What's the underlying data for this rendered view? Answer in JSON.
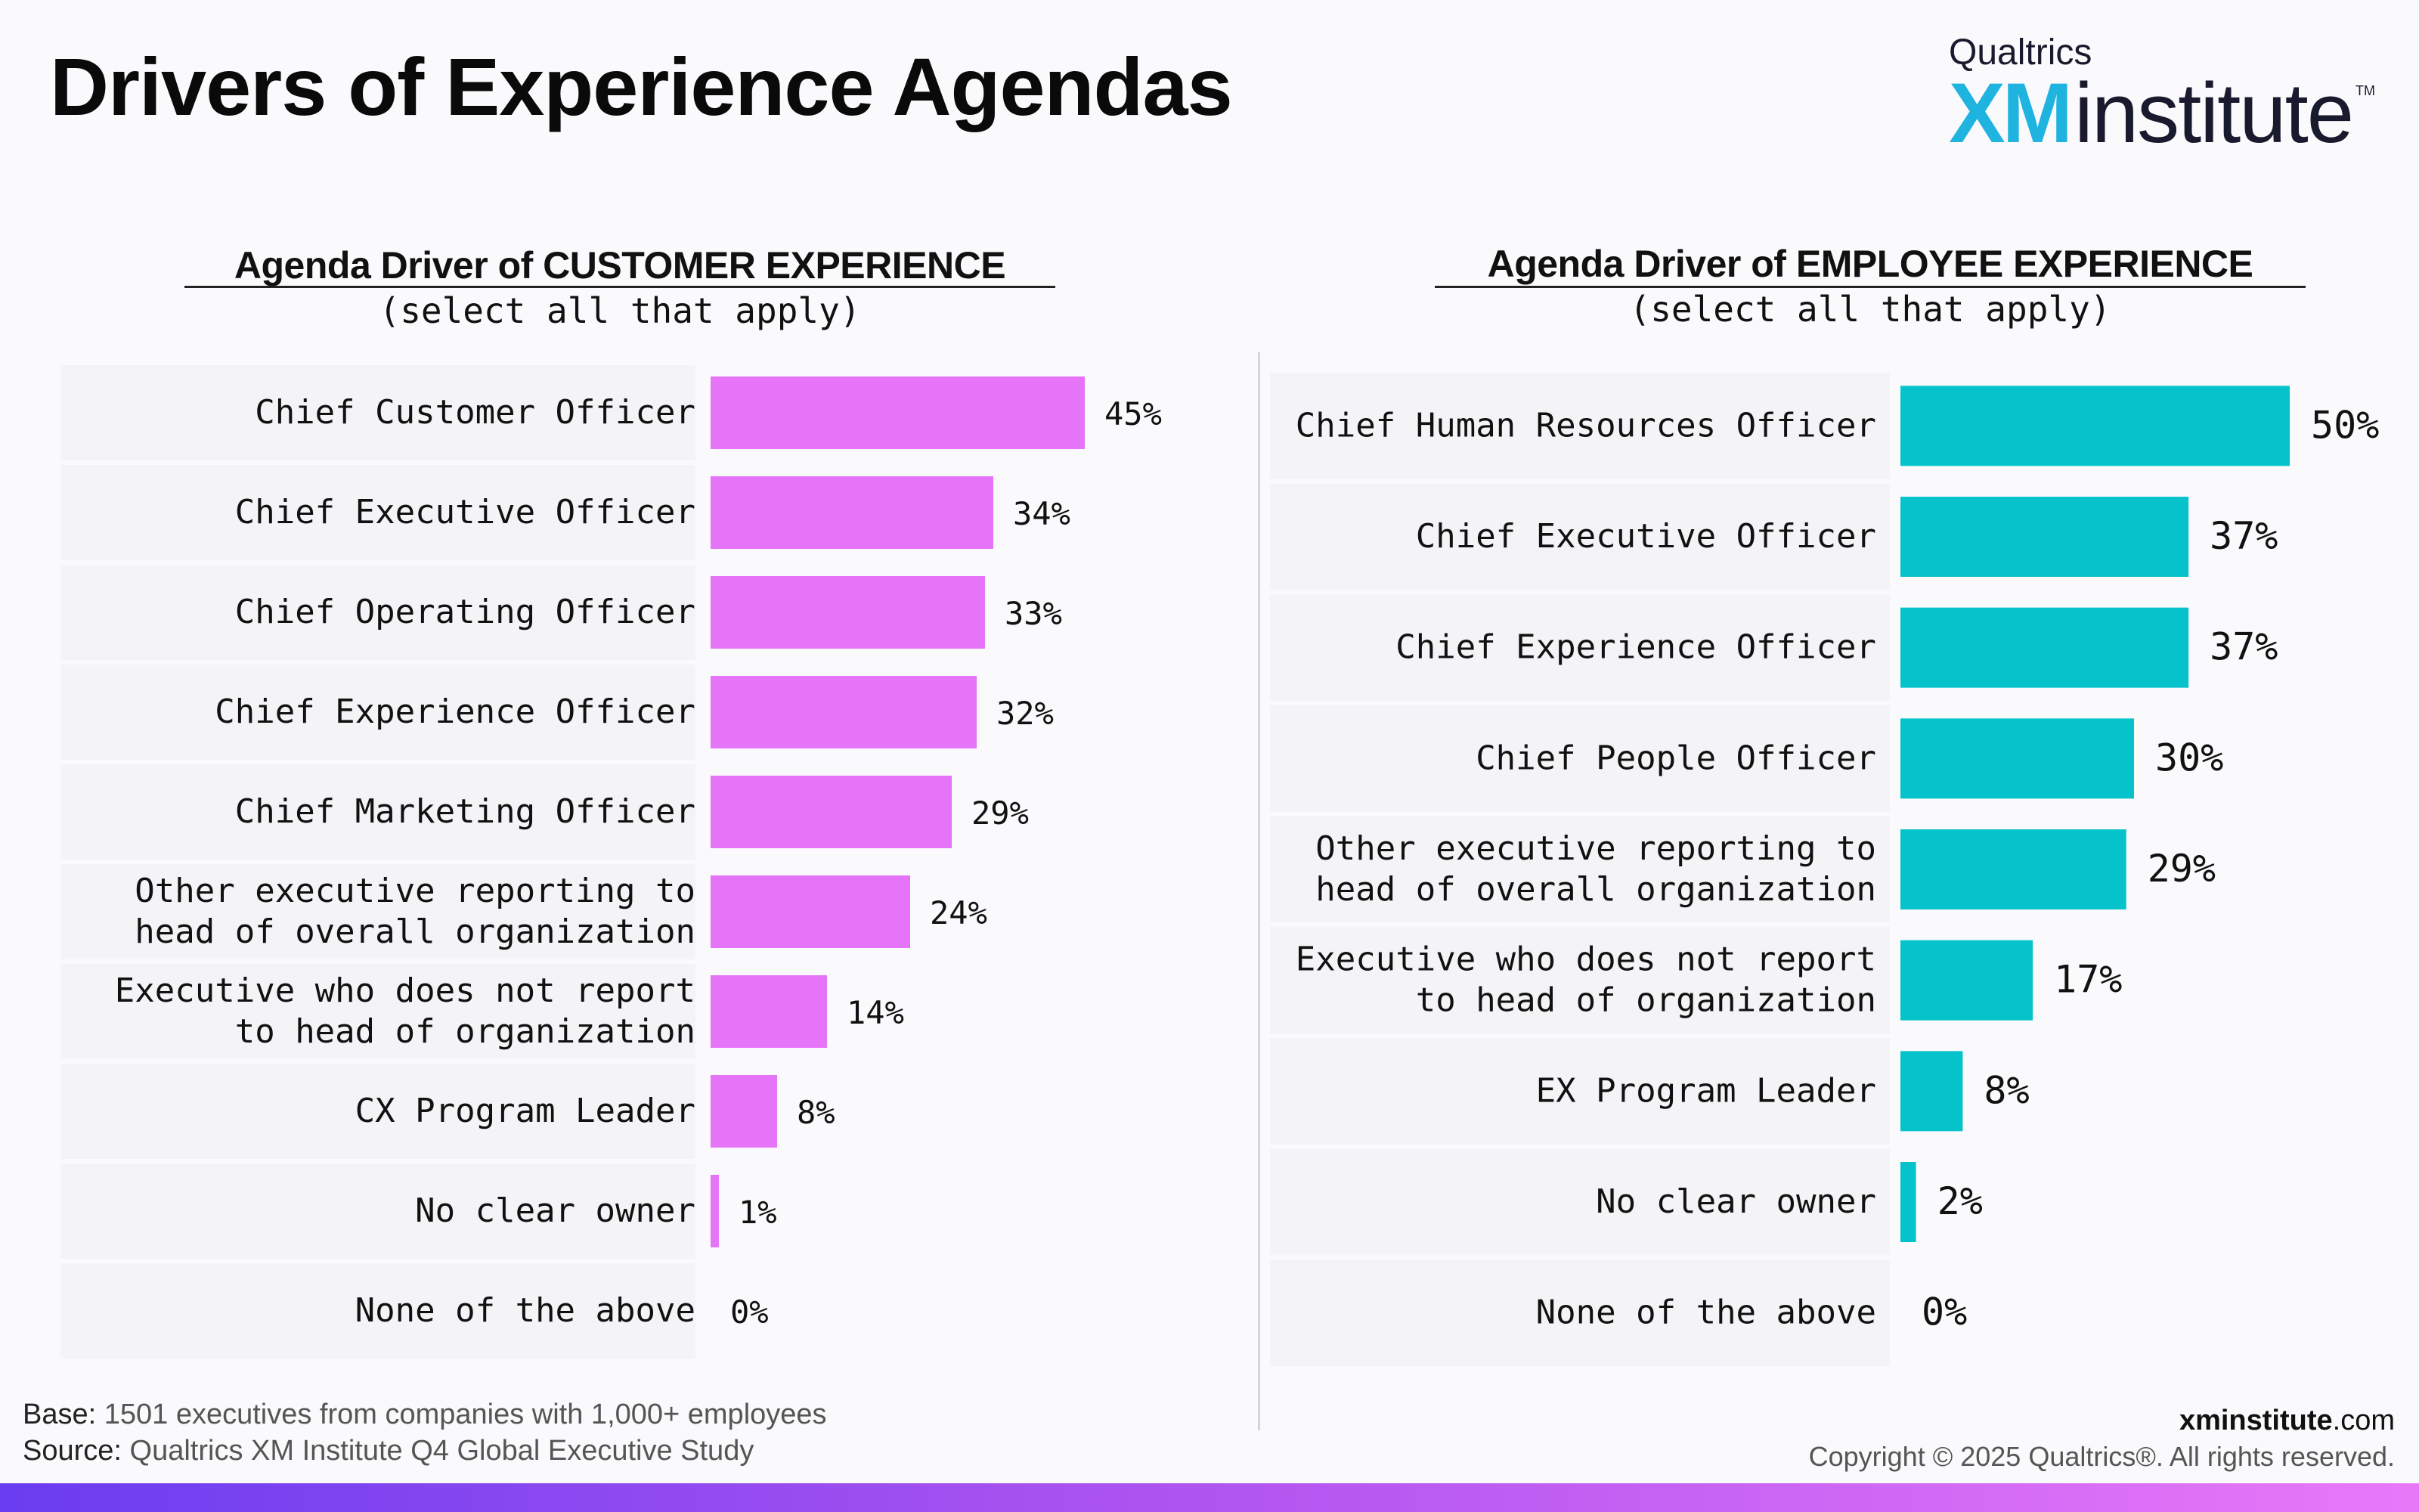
{
  "title": "Drivers of Experience Agendas",
  "logo": {
    "top": "Qualtrics",
    "xm": "XM",
    "institute": "institute",
    "tm": "TM"
  },
  "colors": {
    "cx_bar": "#e674f8",
    "ex_bar": "#06c3cb",
    "accent_blue": "#1fb3e0"
  },
  "chart_data": [
    {
      "type": "bar",
      "orientation": "horizontal",
      "title": "Agenda Driver of CUSTOMER EXPERIENCE",
      "subtitle": "(select all that apply)",
      "categories": [
        [
          "Chief Customer Officer"
        ],
        [
          "Chief Executive Officer"
        ],
        [
          "Chief Operating Officer"
        ],
        [
          "Chief Experience Officer"
        ],
        [
          "Chief Marketing Officer"
        ],
        [
          "Other executive reporting to",
          "head of overall organization"
        ],
        [
          "Executive who does not report",
          "to head of organization"
        ],
        [
          "CX Program Leader"
        ],
        [
          "No clear owner"
        ],
        [
          "None of the above"
        ]
      ],
      "values": [
        45,
        34,
        33,
        32,
        29,
        24,
        14,
        8,
        1,
        0
      ],
      "value_labels": [
        "45%",
        "34%",
        "33%",
        "32%",
        "29%",
        "24%",
        "14%",
        "8%",
        "1%",
        "0%"
      ],
      "unit": "%"
    },
    {
      "type": "bar",
      "orientation": "horizontal",
      "title": "Agenda Driver of EMPLOYEE EXPERIENCE",
      "subtitle": "(select all that apply)",
      "categories": [
        [
          "Chief Human Resources Officer"
        ],
        [
          "Chief Executive Officer"
        ],
        [
          "Chief Experience Officer"
        ],
        [
          "Chief People Officer"
        ],
        [
          "Other executive reporting to",
          "head of overall organization"
        ],
        [
          "Executive who does not report",
          "to head of organization"
        ],
        [
          "EX Program Leader"
        ],
        [
          "No clear owner"
        ],
        [
          "None of the above"
        ]
      ],
      "values": [
        50,
        37,
        37,
        30,
        29,
        17,
        8,
        2,
        0
      ],
      "value_labels": [
        "50%",
        "37%",
        "37%",
        "30%",
        "29%",
        "17%",
        "8%",
        "2%",
        "0%"
      ],
      "unit": "%"
    }
  ],
  "footer": {
    "base_label": "Base:",
    "base_text": " 1501 executives from companies with 1,000+ employees",
    "source_label": "Source:",
    "source_text": " Qualtrics XM Institute Q4 Global Executive Study",
    "site_bold": "xminstitute",
    "site_rest": ".com",
    "copyright": "Copyright © 2025 Qualtrics®. All rights reserved."
  }
}
